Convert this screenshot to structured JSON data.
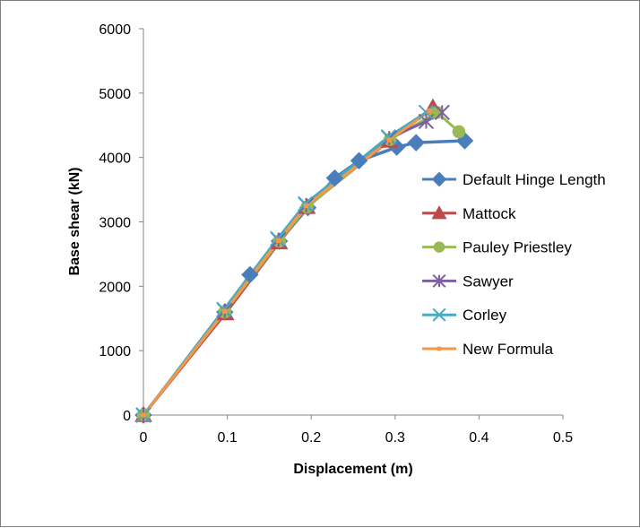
{
  "chart_data": {
    "type": "line",
    "title": "",
    "xlabel": "Displacement (m)",
    "ylabel": "Base shear (kN)",
    "xlim": [
      0,
      0.5
    ],
    "ylim": [
      0,
      6000
    ],
    "x_ticks": [
      0,
      0.1,
      0.2,
      0.3,
      0.4,
      0.5
    ],
    "x_tick_labels": [
      "0",
      "0.1",
      "0.2",
      "0.3",
      "0.4",
      "0.5"
    ],
    "y_ticks": [
      0,
      1000,
      2000,
      3000,
      4000,
      5000,
      6000
    ],
    "y_tick_labels": [
      "0",
      "1000",
      "2000",
      "3000",
      "4000",
      "5000",
      "6000"
    ],
    "grid": false,
    "legend_position": "right",
    "series": [
      {
        "name": "Default Hinge Length",
        "color": "#4a7ebb",
        "marker": "diamond",
        "x": [
          0,
          0.097,
          0.127,
          0.162,
          0.196,
          0.228,
          0.257,
          0.302,
          0.325,
          0.383
        ],
        "y": [
          0,
          1600,
          2180,
          2700,
          3220,
          3680,
          3950,
          4160,
          4230,
          4260
        ]
      },
      {
        "name": "Mattock",
        "color": "#be4b48",
        "marker": "triangle",
        "x": [
          0,
          0.098,
          0.162,
          0.195,
          0.293,
          0.345
        ],
        "y": [
          0,
          1580,
          2680,
          3230,
          4260,
          4780
        ]
      },
      {
        "name": "Pauley Priestley",
        "color": "#98b954",
        "marker": "circle",
        "x": [
          0,
          0.097,
          0.162,
          0.195,
          0.294,
          0.35,
          0.376
        ],
        "y": [
          0,
          1600,
          2700,
          3230,
          4280,
          4700,
          4400
        ]
      },
      {
        "name": "Sawyer",
        "color": "#7d60a0",
        "marker": "star",
        "x": [
          0,
          0.097,
          0.161,
          0.194,
          0.293,
          0.337,
          0.356
        ],
        "y": [
          0,
          1620,
          2720,
          3260,
          4300,
          4560,
          4700
        ]
      },
      {
        "name": "Corley",
        "color": "#46aac5",
        "marker": "x",
        "x": [
          0,
          0.096,
          0.16,
          0.193,
          0.292,
          0.337
        ],
        "y": [
          0,
          1640,
          2740,
          3280,
          4320,
          4700
        ]
      },
      {
        "name": "New Formula",
        "color": "#f79646",
        "marker": "square",
        "x": [
          0,
          0.097,
          0.161,
          0.194,
          0.293,
          0.341
        ],
        "y": [
          0,
          1610,
          2710,
          3250,
          4270,
          4720
        ]
      }
    ]
  }
}
